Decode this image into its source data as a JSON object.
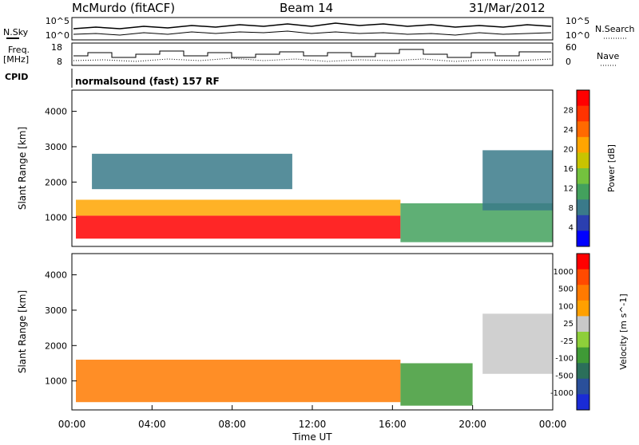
{
  "header": {
    "station": "McMurdo (fitACF)",
    "beam": "Beam 14",
    "date": "31/Mar/2012"
  },
  "top_panels": {
    "nsky_label": "N.Sky",
    "nsearch_label": "N.Search",
    "noise_ticks_left": [
      "10^5",
      "10^0"
    ],
    "noise_ticks_right": [
      "10^5",
      "10^0"
    ],
    "freq_label_1": "Freq.",
    "freq_label_2": "[MHz]",
    "freq_ticks": [
      "18",
      "8"
    ],
    "nave_label": "Nave",
    "nave_ticks": [
      "60",
      "0"
    ],
    "cpid_label": "CPID",
    "cpid_text": "normalsound (fast) 157 RF"
  },
  "colors": {
    "power_scale": [
      "#0000ff",
      "#2b3fb0",
      "#3a7a8a",
      "#43a15d",
      "#74c23e",
      "#c8c400",
      "#ffa500",
      "#ff6a00",
      "#ff3300",
      "#ff0000"
    ],
    "velocity_scale": [
      "#1a2bd6",
      "#2a4f9a",
      "#2b6f5a",
      "#3f9a36",
      "#8ecf3a",
      "#c8c8c8",
      "#ffa000",
      "#ff7a00",
      "#ff4a00",
      "#ff0000"
    ]
  },
  "chart_data": [
    {
      "type": "heatmap",
      "name": "Power",
      "ylabel": "Slant Range [km]",
      "yticks": [
        1000,
        2000,
        3000,
        4000
      ],
      "ylim": [
        180,
        4600
      ],
      "xlim": [
        0,
        24
      ],
      "colorbar_label": "Power [dB]",
      "colorbar_ticks": [
        "28",
        "24",
        "20",
        "16",
        "12",
        "8",
        "4"
      ],
      "bands": [
        {
          "t0": 0.2,
          "t1": 16.4,
          "r0": 400,
          "r1": 1050,
          "level": 9
        },
        {
          "t0": 0.2,
          "t1": 16.4,
          "r0": 1050,
          "r1": 1500,
          "level": 6
        },
        {
          "t0": 16.4,
          "t1": 24,
          "r0": 300,
          "r1": 1400,
          "level": 3
        },
        {
          "t0": 1.0,
          "t1": 11.0,
          "r0": 1800,
          "r1": 2800,
          "level": 2
        },
        {
          "t0": 20.5,
          "t1": 24,
          "r0": 1200,
          "r1": 2900,
          "level": 2
        }
      ]
    },
    {
      "type": "heatmap",
      "name": "Velocity",
      "ylabel": "Slant Range [km]",
      "xlabel": "Time UT",
      "xticks": [
        "00:00",
        "04:00",
        "08:00",
        "12:00",
        "16:00",
        "20:00",
        "00:00"
      ],
      "yticks": [
        1000,
        2000,
        3000,
        4000
      ],
      "ylim": [
        180,
        4600
      ],
      "xlim": [
        0,
        24
      ],
      "colorbar_label": "Velocity [m s^-1]",
      "colorbar_ticks": [
        "1000",
        "500",
        "100",
        "25",
        "-25",
        "-100",
        "-500",
        "-1000"
      ],
      "bands": [
        {
          "t0": 0.2,
          "t1": 16.4,
          "r0": 400,
          "r1": 1600,
          "level": 7
        },
        {
          "t0": 16.4,
          "t1": 20,
          "r0": 300,
          "r1": 1500,
          "level": 3
        },
        {
          "t0": 20.5,
          "t1": 24,
          "r0": 1200,
          "r1": 2900,
          "level": 5
        }
      ]
    }
  ]
}
